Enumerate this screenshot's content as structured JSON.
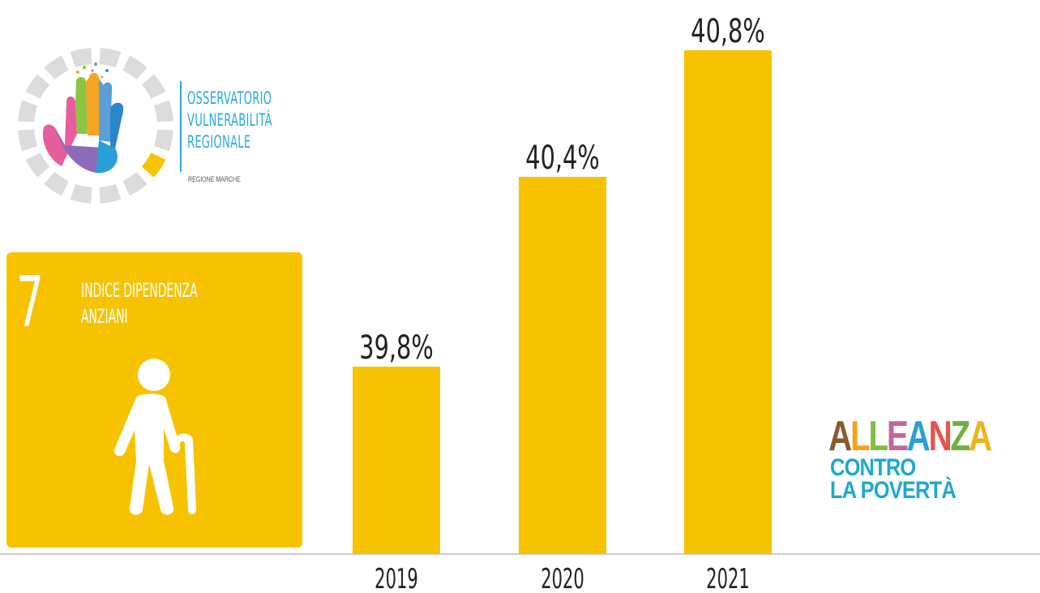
{
  "observatory": {
    "line1": "OSSERVATORIO",
    "line2": "VULNERABILITÀ",
    "line3": "REGIONALE",
    "subtitle": "REGIONE MARCHE"
  },
  "indicator": {
    "number": "7",
    "title_line1": "INDICE DIPENDENZA",
    "title_line2": "ANZIANI",
    "icon": "elderly-person-with-cane-icon"
  },
  "alliance_logo": {
    "line1_letters": [
      {
        "ch": "A",
        "color": "#8a5a2b"
      },
      {
        "ch": "L",
        "color": "#f7a21b"
      },
      {
        "ch": "L",
        "color": "#7fbf3f"
      },
      {
        "ch": "E",
        "color": "#c0679c"
      },
      {
        "ch": "A",
        "color": "#2a9fd6"
      },
      {
        "ch": "N",
        "color": "#e4564a"
      },
      {
        "ch": "Z",
        "color": "#6db33f"
      },
      {
        "ch": "A",
        "color": "#f0b21b"
      }
    ],
    "line2": "CONTRO",
    "line3": "LA POVERTÀ"
  },
  "colors": {
    "bar": "#f7c300",
    "axis": "#bbbbbb",
    "observatory_blue": "#29a9e0"
  },
  "chart_data": {
    "type": "bar",
    "categories": [
      "2019",
      "2020",
      "2021"
    ],
    "values": [
      39.8,
      40.4,
      40.8
    ],
    "value_labels": [
      "39,8%",
      "40,4%",
      "40,8%"
    ],
    "title": "",
    "xlabel": "",
    "ylabel": "",
    "grid": false,
    "legend": "none"
  }
}
